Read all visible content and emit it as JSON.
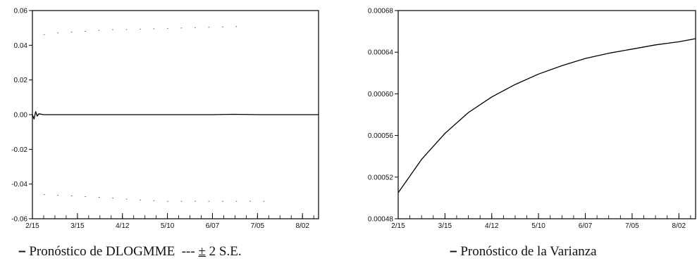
{
  "chart_data": [
    {
      "type": "line",
      "title": "",
      "xlabel": "",
      "ylabel": "",
      "x_ticks": [
        "2/15",
        "3/15",
        "4/12",
        "5/10",
        "6/07",
        "7/05",
        "8/02"
      ],
      "y_ticks": [
        "0.06",
        "0.04",
        "0.02",
        "0.00",
        "-0.02",
        "-0.04",
        "-0.06"
      ],
      "ylim": [
        -0.06,
        0.06
      ],
      "grid": false,
      "series": [
        {
          "name": "Pronóstico de DLOGMME",
          "style": "solid",
          "x": [
            "2/15",
            "2/16",
            "2/17",
            "2/18",
            "2/19",
            "2/22",
            "3/15",
            "4/12",
            "5/10",
            "6/07",
            "6/20",
            "7/05",
            "8/02",
            "8/12"
          ],
          "y": [
            0.0,
            -0.0025,
            0.0018,
            -0.0008,
            0.0005,
            0.0,
            0.0,
            0.0,
            0.0,
            0.0,
            0.0002,
            0.0,
            0.0,
            0.0
          ]
        },
        {
          "name": "+2 S.E.",
          "style": "dotted",
          "x": [
            "2/22",
            "3/01",
            "4/05",
            "4/12",
            "6/30"
          ],
          "y": [
            0.046,
            0.047,
            0.049,
            0.049,
            0.051
          ]
        },
        {
          "name": "-2 S.E.",
          "style": "dotted",
          "x": [
            "2/22",
            "3/15",
            "4/05",
            "4/19",
            "5/10",
            "6/07",
            "6/30",
            "7/12"
          ],
          "y": [
            -0.046,
            -0.047,
            -0.048,
            -0.049,
            -0.05,
            -0.05,
            -0.05,
            -0.05
          ]
        }
      ],
      "legend": {
        "line_label": "Pronóstico de DLOGMME",
        "band_label": "2 S.E.",
        "band_sign": "±",
        "band_dash": "---"
      }
    },
    {
      "type": "line",
      "title": "",
      "xlabel": "",
      "ylabel": "",
      "x_ticks": [
        "2/15",
        "3/15",
        "4/12",
        "5/10",
        "6/07",
        "7/05",
        "8/02"
      ],
      "y_ticks": [
        "0.00068",
        "0.00064",
        "0.00060",
        "0.00056",
        "0.00052",
        "0.00048"
      ],
      "ylim": [
        0.00048,
        0.00068
      ],
      "grid": false,
      "series": [
        {
          "name": "Pronóstico de la Varianza",
          "style": "solid",
          "x": [
            "2/15",
            "3/01",
            "3/15",
            "3/29",
            "4/12",
            "4/26",
            "5/10",
            "5/24",
            "6/07",
            "6/21",
            "7/05",
            "7/19",
            "8/02",
            "8/12"
          ],
          "y": [
            0.000505,
            0.000537,
            0.000562,
            0.000582,
            0.000597,
            0.000609,
            0.000619,
            0.000627,
            0.000634,
            0.000639,
            0.000643,
            0.000647,
            0.00065,
            0.000653
          ]
        }
      ],
      "legend": {
        "line_label": "Pronóstico de la Varianza"
      }
    }
  ]
}
